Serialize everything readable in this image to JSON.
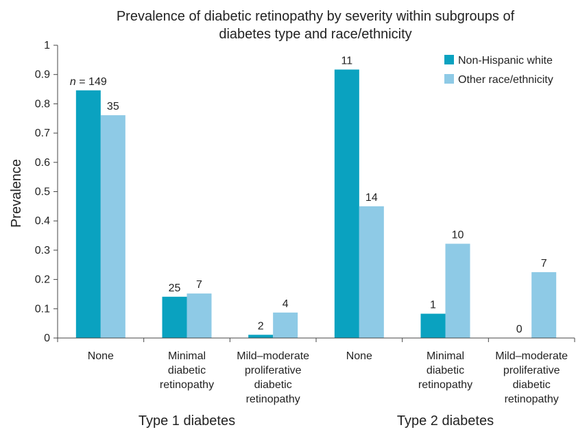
{
  "chart_data": {
    "type": "bar",
    "title_lines": [
      "Prevalence of diabetic retinopathy by severity within subgroups of",
      "diabetes type and race/ethnicity"
    ],
    "ylabel": "Prevalence",
    "xlabel": "",
    "ylim": [
      0,
      1
    ],
    "yticks": [
      "0",
      "0.1",
      "0.2",
      "0.3",
      "0.4",
      "0.5",
      "0.6",
      "0.7",
      "0.8",
      "0.9",
      "1"
    ],
    "grid": false,
    "legend_position": "top-right",
    "groups": [
      "Type 1 diabetes",
      "Type 2 diabetes"
    ],
    "categories": [
      [
        "None"
      ],
      [
        "Minimal",
        "diabetic",
        "retinopathy"
      ],
      [
        "Mild–moderate",
        "proliferative",
        "diabetic",
        "retinopathy"
      ],
      [
        "None"
      ],
      [
        "Minimal",
        "diabetic",
        "retinopathy"
      ],
      [
        "Mild–moderate",
        "proliferative",
        "diabetic",
        "retinopathy"
      ]
    ],
    "series": [
      {
        "name": "Non-Hispanic white",
        "color": "#0aa2c0",
        "values": [
          0.846,
          0.141,
          0.011,
          0.917,
          0.083,
          0.0
        ],
        "labels": [
          "n = 149",
          "25",
          "2",
          "11",
          "1",
          "0"
        ]
      },
      {
        "name": "Other race/ethnicity",
        "color": "#8ecae6",
        "values": [
          0.761,
          0.152,
          0.087,
          0.45,
          0.322,
          0.225
        ],
        "labels": [
          "35",
          "7",
          "4",
          "14",
          "10",
          "7"
        ]
      }
    ]
  }
}
